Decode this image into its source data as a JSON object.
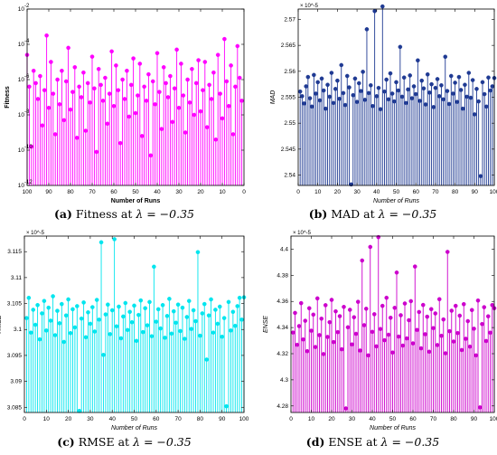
{
  "chart_data": [
    {
      "type": "stem",
      "panel": "a",
      "caption": {
        "letter": "(a)",
        "text": "Fitness at",
        "math": "λ = −0.35"
      },
      "xlabel": "Number of Runs",
      "ylabel": "Fitness",
      "x_reversed": true,
      "xlim": [
        0,
        100
      ],
      "xticks": [
        "100",
        "90",
        "80",
        "70",
        "60",
        "50",
        "40",
        "30",
        "20",
        "10",
        "0"
      ],
      "yscale": "log",
      "ylim_exp": [
        -12,
        -2
      ],
      "yticks": [
        "10^-12",
        "10^-10",
        "10^-8",
        "10^-6",
        "10^-4",
        "10^-2"
      ],
      "color": "#ff00ff",
      "values_log10": [
        -7.2,
        -5.9,
        -4.1,
        -6.4,
        -9.1,
        -5.2,
        -7.5,
        -6.1,
        -3.7,
        -8.2,
        -6.8,
        -4.6,
        -9.4,
        -5.6,
        -7.1,
        -6.3,
        -8.7,
        -5.0,
        -6.6,
        -7.8,
        -4.9,
        -6.2,
        -8.0,
        -5.4,
        -7.3,
        -6.0,
        -9.0,
        -6.9,
        -5.1,
        -7.6,
        -4.3,
        -6.5,
        -8.4,
        -5.8,
        -7.0,
        -6.2,
        -5.3,
        -8.8,
        -6.7,
        -4.5,
        -7.4,
        -6.1,
        -10.3,
        -5.7,
        -7.2,
        -6.4,
        -9.2,
        -5.1,
        -6.9,
        -7.9,
        -4.8,
        -6.3,
        -8.1,
        -5.5,
        -7.1,
        -6.0,
        -9.6,
        -6.6,
        -5.2,
        -7.5,
        -4.4,
        -6.8,
        -8.5,
        -5.9,
        -7.2,
        -6.3,
        -5.4,
        -10.1,
        -6.5,
        -4.7,
        -7.3,
        -6.2,
        -8.9,
        -5.6,
        -7.0,
        -6.4,
        -9.3,
        -5.3,
        -6.7,
        -7.7,
        -4.2,
        -6.1,
        -8.3,
        -5.5,
        -7.4,
        -6.0,
        -9.1,
        -6.8,
        -5.0,
        -7.6,
        -3.5,
        -6.6,
        -8.6,
        -5.8,
        -7.1,
        -6.2,
        -5.5,
        -9.8,
        -6.4,
        -4.6
      ]
    },
    {
      "type": "stem",
      "panel": "b",
      "caption": {
        "letter": "(b)",
        "text": "MAD at",
        "math": "λ = −0.35"
      },
      "xlabel": "Number of Runs",
      "ylabel": "MAD",
      "x_reversed": false,
      "xlim": [
        0,
        100
      ],
      "xticks": [
        "0",
        "10",
        "20",
        "30",
        "40",
        "50",
        "60",
        "70",
        "80",
        "90",
        "100"
      ],
      "yscale": "linear",
      "ylim": [
        2.538,
        2.572
      ],
      "yticks": [
        "2.54",
        "2.545",
        "2.55",
        "2.555",
        "2.56",
        "2.565",
        "2.57"
      ],
      "exponent": "× 10^-5",
      "color": "#1f3a93",
      "values": [
        2.5561,
        2.5552,
        2.5538,
        2.5571,
        2.5589,
        2.5548,
        2.5532,
        2.5593,
        2.5557,
        2.5579,
        2.5544,
        2.5586,
        2.5563,
        2.5528,
        2.5574,
        2.5551,
        2.5597,
        2.5539,
        2.5566,
        2.5582,
        2.5547,
        2.5612,
        2.5558,
        2.5535,
        2.5591,
        2.5569,
        2.5382,
        2.5554,
        2.5586,
        2.5541,
        2.5577,
        2.5562,
        2.5599,
        2.5545,
        2.5681,
        2.5558,
        2.5573,
        2.5533,
        2.5716,
        2.5552,
        2.5568,
        2.5527,
        2.5725,
        2.5561,
        2.5584,
        2.5546,
        2.5596,
        2.5557,
        2.5542,
        2.5579,
        2.5563,
        2.5647,
        2.5551,
        2.5588,
        2.5539,
        2.5565,
        2.5592,
        2.5548,
        2.5571,
        2.5556,
        2.5621,
        2.5543,
        2.5582,
        2.5567,
        2.5536,
        2.5594,
        2.5559,
        2.5575,
        2.5531,
        2.5568,
        2.5585,
        2.5552,
        2.5573,
        2.5546,
        2.5628,
        2.5562,
        2.5537,
        2.5591,
        2.5557,
        2.5578,
        2.5541,
        2.5589,
        2.5564,
        2.5528,
        2.5574,
        2.5551,
        2.5597,
        2.5549,
        2.5583,
        2.5517,
        2.5566,
        2.5542,
        2.5398,
        2.5579,
        2.5556,
        2.5532,
        2.5588,
        2.5563,
        2.5571,
        2.5587
      ]
    },
    {
      "type": "stem",
      "panel": "c",
      "caption": {
        "letter": "(c)",
        "text": "RMSE at",
        "math": "λ = −0.35"
      },
      "xlabel": "Number of Runs",
      "ylabel": "RMSE",
      "x_reversed": false,
      "xlim": [
        0,
        100
      ],
      "xticks": [
        "0",
        "10",
        "20",
        "30",
        "40",
        "50",
        "60",
        "70",
        "80",
        "90",
        "100"
      ],
      "yscale": "linear",
      "ylim": [
        3.084,
        3.118
      ],
      "yticks": [
        "3.085",
        "3.09",
        "3.095",
        "3.1",
        "3.105",
        "3.11",
        "3.115"
      ],
      "exponent": "× 10^-5",
      "color": "#00e5ee",
      "values": [
        3.1022,
        3.1061,
        3.0994,
        3.1038,
        3.1009,
        3.1047,
        3.0981,
        3.1031,
        3.1055,
        3.0998,
        3.1042,
        3.1017,
        3.1064,
        3.0989,
        3.1036,
        3.1012,
        3.1049,
        3.0976,
        3.1027,
        3.1058,
        3.0993,
        3.1039,
        3.1004,
        3.1045,
        3.0843,
        3.1021,
        3.1052,
        3.0985,
        3.1033,
        3.1011,
        3.1043,
        3.0996,
        3.1057,
        3.1019,
        3.1168,
        3.0951,
        3.1029,
        3.1048,
        3.0991,
        3.1037,
        3.1174,
        3.1006,
        3.1044,
        3.0983,
        3.1025,
        3.1051,
        3.0999,
        3.1034,
        3.1014,
        3.1046,
        3.0978,
        3.1028,
        3.1056,
        3.0995,
        3.1041,
        3.1008,
        3.1053,
        3.0987,
        3.1121,
        3.1015,
        3.1039,
        3.1002,
        3.1047,
        3.0984,
        3.1026,
        3.1059,
        3.0992,
        3.1035,
        3.1013,
        3.1048,
        3.0997,
        3.1042,
        3.0982,
        3.1024,
        3.1055,
        3.1001,
        3.1037,
        3.1016,
        3.1149,
        3.0988,
        3.1031,
        3.1049,
        3.0942,
        3.1027,
        3.1058,
        3.0994,
        3.1038,
        3.1011,
        3.1044,
        3.0986,
        3.1022,
        3.0852,
        3.1053,
        3.0998,
        3.1034,
        3.1007,
        3.1045,
        3.1061,
        3.1019,
        3.1062
      ]
    },
    {
      "type": "stem",
      "panel": "d",
      "caption": {
        "letter": "(d)",
        "text": "ENSE at",
        "math": "λ = −0.35"
      },
      "xlabel": "Number of Runs",
      "ylabel": "ENSE",
      "x_reversed": false,
      "xlim": [
        0,
        100
      ],
      "xticks": [
        "0",
        "10",
        "20",
        "30",
        "40",
        "50",
        "60",
        "70",
        "80",
        "90",
        "100"
      ],
      "yscale": "linear",
      "ylim": [
        4.275,
        4.41
      ],
      "yticks": [
        "4.28",
        "4.3",
        "4.32",
        "4.34",
        "4.36",
        "4.38",
        "4.4"
      ],
      "exponent": "× 10^-5",
      "color": "#cc00cc",
      "values": [
        4.3362,
        4.3512,
        4.3268,
        4.3411,
        4.3587,
        4.3309,
        4.3452,
        4.3219,
        4.3548,
        4.3376,
        4.3499,
        4.3251,
        4.3623,
        4.3342,
        4.3468,
        4.3197,
        4.3571,
        4.3328,
        4.3441,
        4.3612,
        4.3289,
        4.3524,
        4.3365,
        4.3487,
        4.3234,
        4.3558,
        4.2781,
        4.3402,
        4.3536,
        4.3271,
        4.3479,
        4.3352,
        4.3597,
        4.3224,
        4.3913,
        4.3418,
        4.3544,
        4.3187,
        4.4017,
        4.3367,
        4.3502,
        4.3256,
        4.4092,
        4.3389,
        4.3566,
        4.3303,
        4.3628,
        4.3345,
        4.3475,
        4.3209,
        4.3551,
        4.3821,
        4.3331,
        4.3494,
        4.3262,
        4.3584,
        4.3317,
        4.3456,
        4.3602,
        4.3279,
        4.3867,
        4.3382,
        4.3519,
        4.3241,
        4.3573,
        4.3349,
        4.3483,
        4.3215,
        4.3541,
        4.3396,
        4.3508,
        4.3266,
        4.3617,
        4.3337,
        4.3462,
        4.3203,
        4.3979,
        4.3372,
        4.3529,
        4.3293,
        4.3566,
        4.3358,
        4.3491,
        4.3228,
        4.3579,
        4.3314,
        4.3449,
        4.3254,
        4.3534,
        4.3391,
        4.3187,
        4.3607,
        4.2789,
        4.3427,
        4.3556,
        4.3297,
        4.3486,
        4.3361,
        4.3572,
        4.3548
      ]
    }
  ]
}
